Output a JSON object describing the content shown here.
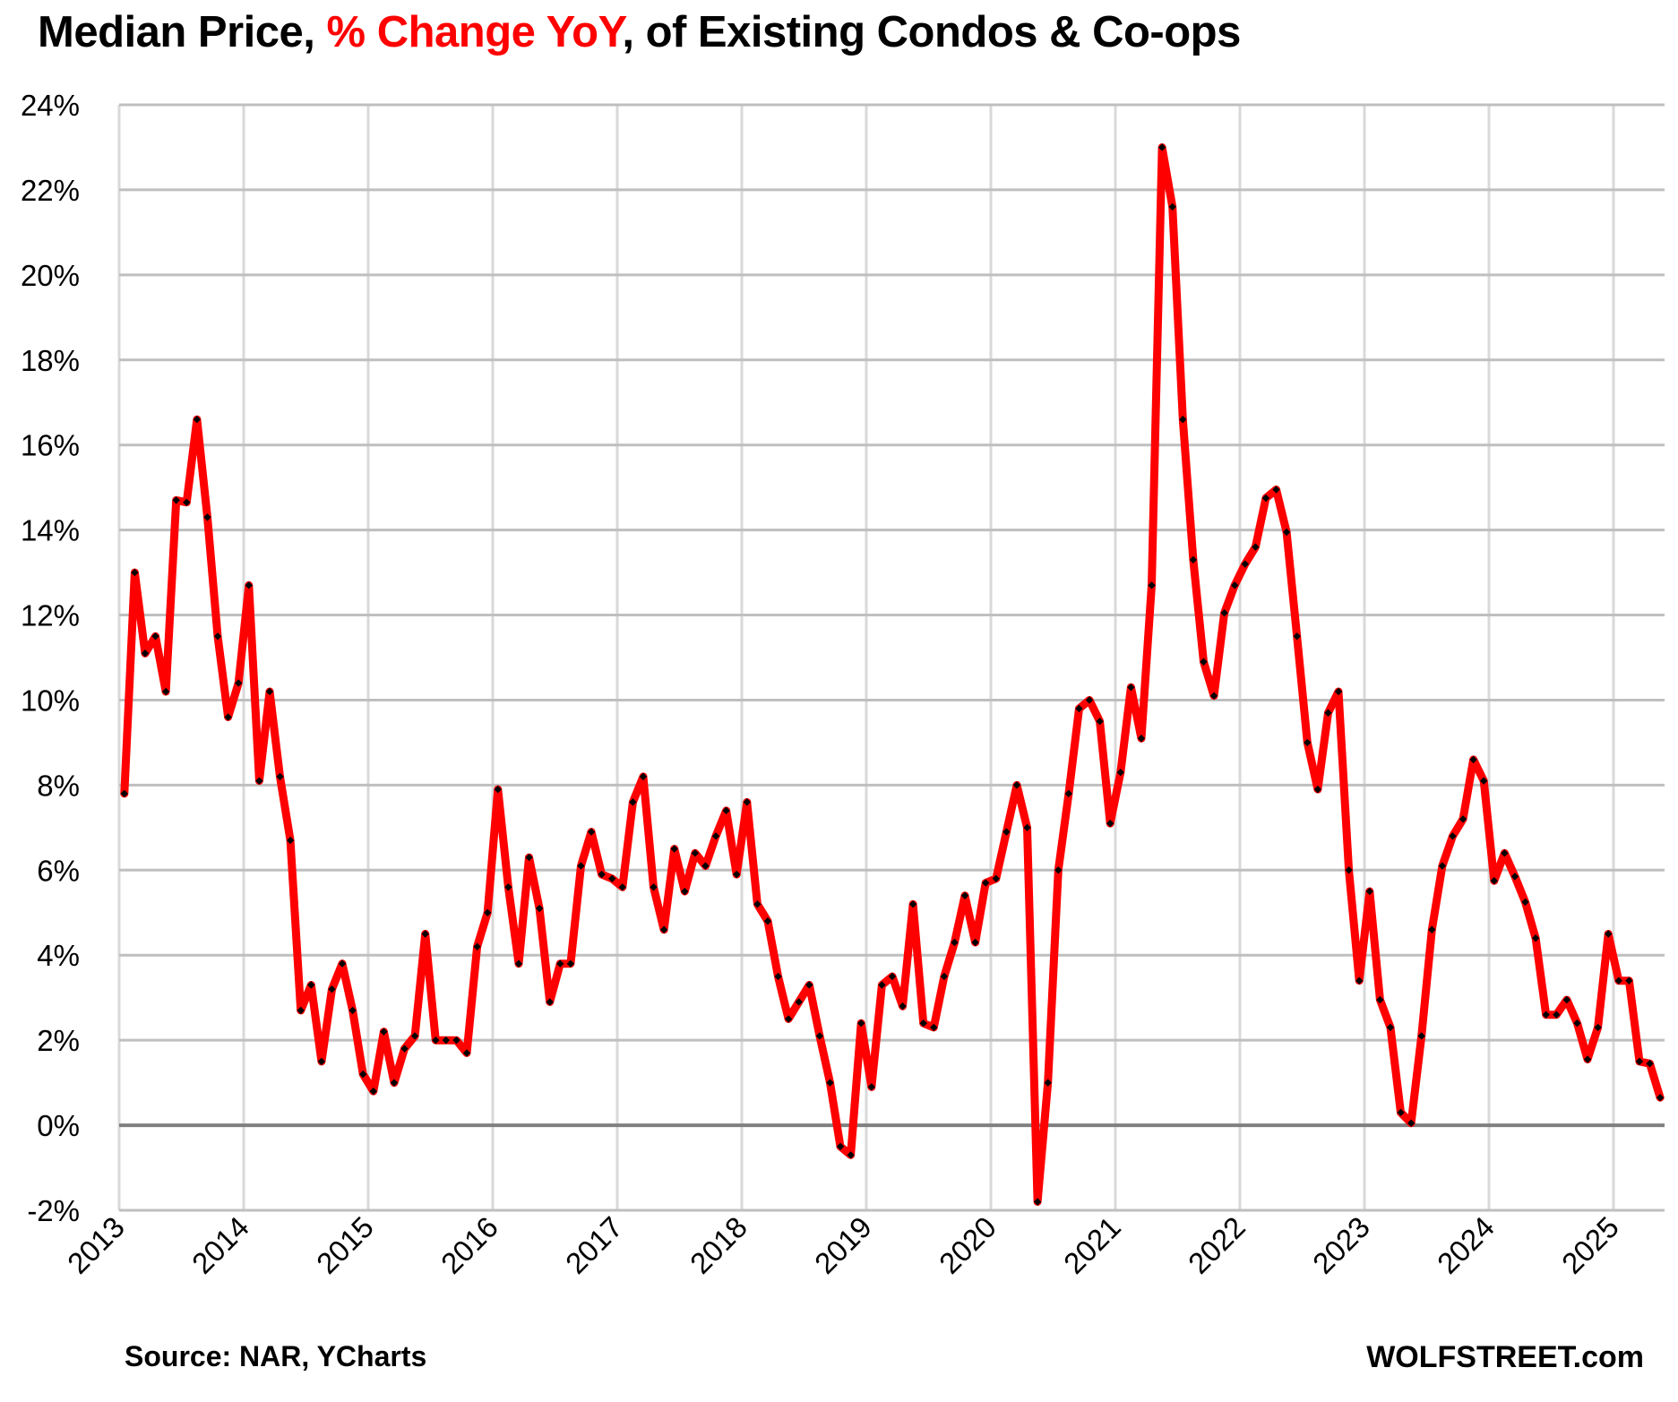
{
  "chart_data": {
    "type": "line",
    "title_parts": [
      "Median Price, ",
      "% Change YoY",
      ", of Existing Condos & Co-ops"
    ],
    "title": "Median Price, % Change YoY, of Existing Condos & Co-ops",
    "source": "Source: NAR, YCharts",
    "brand": "WOLFSTREET.com",
    "xlabel": "",
    "ylabel": "",
    "x_start": "2013-01",
    "frequency": "monthly",
    "x_ticks": [
      "2013",
      "2014",
      "2015",
      "2016",
      "2017",
      "2018",
      "2019",
      "2020",
      "2021",
      "2022",
      "2023",
      "2024",
      "2025"
    ],
    "y_ticks": [
      "24%",
      "22%",
      "20%",
      "18%",
      "16%",
      "14%",
      "12%",
      "10%",
      "8%",
      "6%",
      "4%",
      "2%",
      "0%",
      "-2%"
    ],
    "y_tick_values": [
      24,
      22,
      20,
      18,
      16,
      14,
      12,
      10,
      8,
      6,
      4,
      2,
      0,
      -2
    ],
    "ylim": [
      -2,
      24
    ],
    "grid": true,
    "colors": {
      "line": "#ff0000",
      "marker": "#000000",
      "grid_h": "#bfbfbf",
      "grid_v": "#d9d9d9",
      "zero_line": "#808080",
      "title_highlight": "#ff0000"
    },
    "series": [
      {
        "name": "% Change YoY",
        "values": [
          7.8,
          13.0,
          11.1,
          11.5,
          10.2,
          14.7,
          14.65,
          16.6,
          14.3,
          11.5,
          9.6,
          10.4,
          12.7,
          8.1,
          10.2,
          8.2,
          6.7,
          2.7,
          3.3,
          1.5,
          3.2,
          3.8,
          2.7,
          1.2,
          0.8,
          2.2,
          1.0,
          1.8,
          2.1,
          4.5,
          2.0,
          2.0,
          2.0,
          1.7,
          4.2,
          5.0,
          7.9,
          5.6,
          3.8,
          6.3,
          5.1,
          2.9,
          3.8,
          3.8,
          6.1,
          6.9,
          5.9,
          5.8,
          5.6,
          7.6,
          8.2,
          5.6,
          4.6,
          6.5,
          5.5,
          6.4,
          6.1,
          6.8,
          7.4,
          5.9,
          7.6,
          5.2,
          4.8,
          3.5,
          2.5,
          2.9,
          3.3,
          2.1,
          1.0,
          -0.5,
          -0.7,
          2.4,
          0.9,
          3.3,
          3.5,
          2.8,
          5.2,
          2.4,
          2.3,
          3.5,
          4.3,
          5.4,
          4.3,
          5.7,
          5.8,
          6.9,
          8.0,
          7.0,
          -1.8,
          1.0,
          6.0,
          7.8,
          9.8,
          10.0,
          9.5,
          7.1,
          8.3,
          10.3,
          9.1,
          12.7,
          23.0,
          21.6,
          16.6,
          13.3,
          10.9,
          10.1,
          12.05,
          12.7,
          13.2,
          13.6,
          14.75,
          14.95,
          13.95,
          11.5,
          9.0,
          7.9,
          9.7,
          10.2,
          6.0,
          3.4,
          5.5,
          2.95,
          2.3,
          0.3,
          0.05,
          2.1,
          4.6,
          6.1,
          6.8,
          7.2,
          8.6,
          8.1,
          5.75,
          6.4,
          5.85,
          5.25,
          4.4,
          2.6,
          2.6,
          2.95,
          2.4,
          1.55,
          2.3,
          4.5,
          3.4,
          3.4,
          1.5,
          1.45,
          0.65
        ]
      }
    ]
  }
}
